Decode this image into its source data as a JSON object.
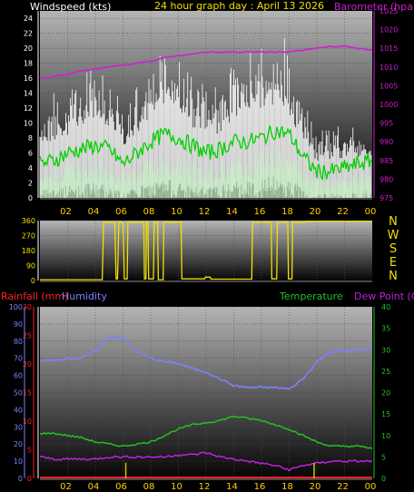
{
  "title": "24 hour graph day : April 13 2026",
  "colors": {
    "background": "#000000",
    "wind_axis": "#ffffff",
    "barometer": "#d01fd0",
    "gust": "#ffffff",
    "wind_avg": "#00d000",
    "wind_light": "#c8f0c8",
    "direction": "#f0e000",
    "rainfall": "#ff2020",
    "humidity": "#7f7fff",
    "temperature": "#22c022",
    "dew_point": "#c020e0",
    "rain_bar": "#d4c000"
  },
  "chart_data": [
    {
      "type": "line",
      "panel": "wind",
      "title": "24 hour graph day : April 13 2026",
      "left_label": "Windspeed (kts)",
      "right_label": "Barometer (hpa)",
      "x_ticks": [
        "02",
        "04",
        "06",
        "08",
        "10",
        "12",
        "14",
        "16",
        "18",
        "20",
        "22",
        "00"
      ],
      "x_range_hours": [
        0,
        24
      ],
      "y_left_ticks": [
        "0",
        "2",
        "4",
        "6",
        "8",
        "10",
        "12",
        "14",
        "16",
        "18",
        "20",
        "22",
        "24"
      ],
      "y_left_range": [
        0,
        25
      ],
      "y_right_ticks": [
        "975",
        "980",
        "985",
        "990",
        "995",
        "1000",
        "1005",
        "1010",
        "1015",
        "1020",
        "1025"
      ],
      "y_right_range": [
        975,
        1025
      ],
      "grid": true,
      "series": [
        {
          "role": "gust_max",
          "x": [
            0,
            1,
            2,
            3,
            4,
            5,
            6,
            7,
            8,
            9,
            10,
            11,
            12,
            13,
            14,
            15,
            16,
            17,
            18,
            19,
            20,
            21,
            22,
            23,
            24
          ],
          "values": [
            12,
            14,
            15,
            16,
            18,
            16,
            12,
            15,
            18,
            20,
            19,
            16,
            15,
            15,
            18,
            19,
            21,
            20,
            22,
            13,
            9,
            9,
            10,
            9,
            9
          ]
        },
        {
          "role": "gust_typical",
          "x": [
            0,
            1,
            2,
            3,
            4,
            5,
            6,
            7,
            8,
            9,
            10,
            11,
            12,
            13,
            14,
            15,
            16,
            17,
            18,
            19,
            20,
            21,
            22,
            23,
            24
          ],
          "values": [
            7,
            8,
            9,
            10,
            11,
            10,
            8,
            9,
            12,
            13,
            12,
            10,
            10,
            9,
            11,
            12,
            13,
            13,
            12,
            8,
            5,
            6,
            6,
            6,
            6
          ]
        },
        {
          "role": "average",
          "x": [
            0,
            1,
            2,
            3,
            4,
            5,
            6,
            7,
            8,
            9,
            10,
            11,
            12,
            13,
            14,
            15,
            16,
            17,
            18,
            19,
            20,
            21,
            22,
            23,
            24
          ],
          "values": [
            4.5,
            5,
            6,
            6.5,
            7,
            6.5,
            4.5,
            6,
            7.5,
            8.5,
            8,
            7,
            6,
            6.5,
            7.5,
            7.5,
            8,
            9,
            8.5,
            5.5,
            3.5,
            3.5,
            4,
            4.5,
            5
          ]
        },
        {
          "role": "lull",
          "x": [
            0,
            1,
            2,
            3,
            4,
            5,
            6,
            7,
            8,
            9,
            10,
            11,
            12,
            13,
            14,
            15,
            16,
            17,
            18,
            19,
            20,
            21,
            22,
            23,
            24
          ],
          "values": [
            2.5,
            3,
            3.5,
            3.5,
            4,
            3.5,
            2.5,
            3,
            4,
            4.5,
            4,
            3.5,
            3,
            3.5,
            4,
            4,
            4.5,
            5,
            4.5,
            3,
            2,
            2,
            2,
            2.5,
            2.5
          ]
        },
        {
          "role": "barometer",
          "x": [
            0,
            1,
            2,
            3,
            4,
            5,
            6,
            7,
            8,
            9,
            10,
            11,
            12,
            13,
            14,
            15,
            16,
            17,
            18,
            19,
            20,
            21,
            22,
            23,
            24
          ],
          "values": [
            1007,
            1007.5,
            1008,
            1009,
            1009.5,
            1010,
            1010.5,
            1011,
            1011.5,
            1012.5,
            1013,
            1013.5,
            1014,
            1014,
            1014,
            1014,
            1014,
            1014,
            1014,
            1014.5,
            1015,
            1015.5,
            1015.5,
            1015,
            1014.5
          ]
        }
      ]
    },
    {
      "type": "line",
      "panel": "direction",
      "y_left_ticks": [
        "0",
        "90",
        "180",
        "270",
        "360"
      ],
      "y_left_range": [
        0,
        360
      ],
      "compass": [
        "N",
        "W",
        "S",
        "E",
        "N"
      ],
      "x_range_hours": [
        0,
        24
      ],
      "grid": true,
      "series": [
        {
          "role": "direction",
          "x": [
            0,
            4.5,
            4.6,
            5.4,
            5.5,
            5.6,
            5.7,
            5.8,
            6.0,
            6.1,
            6.3,
            6.35,
            6.5,
            7.5,
            7.55,
            7.65,
            7.7,
            7.8,
            7.85,
            8.2,
            8.25,
            8.5,
            8.55,
            8.9,
            8.95,
            9.5,
            9.55,
            10.2,
            10.25,
            11.9,
            11.95,
            12.3,
            12.35,
            15.3,
            15.35,
            16.7,
            16.75,
            17.1,
            17.15,
            17.9,
            17.95,
            18.2,
            18.25,
            19.2,
            19.25,
            24
          ],
          "values": [
            5,
            5,
            350,
            350,
            10,
            10,
            350,
            350,
            350,
            10,
            10,
            350,
            350,
            350,
            10,
            10,
            350,
            350,
            10,
            10,
            350,
            350,
            5,
            5,
            350,
            350,
            350,
            350,
            10,
            10,
            20,
            20,
            8,
            8,
            350,
            350,
            10,
            10,
            350,
            350,
            10,
            10,
            350,
            350,
            355,
            355
          ]
        }
      ]
    },
    {
      "type": "line",
      "panel": "weather",
      "left_label_rain": "Rainfall (mm)",
      "left_label_humidity": "Humidity",
      "right_label_temp": "Temperature",
      "right_label_dew": "Dew Point (C)",
      "x_ticks": [
        "02",
        "04",
        "06",
        "08",
        "10",
        "12",
        "14",
        "16",
        "18",
        "20",
        "22",
        "00"
      ],
      "x_range_hours": [
        0,
        24
      ],
      "humidity_ticks": [
        "0",
        "10",
        "20",
        "30",
        "40",
        "50",
        "60",
        "70",
        "80",
        "90",
        "100"
      ],
      "humidity_range": [
        0,
        100
      ],
      "rain_ticks": [
        "0",
        "5",
        "10",
        "15",
        "20",
        "25",
        "30"
      ],
      "rain_range": [
        0,
        30
      ],
      "temp_ticks": [
        "0",
        "5",
        "10",
        "15",
        "20",
        "25",
        "30",
        "35",
        "40"
      ],
      "temp_range": [
        0,
        40
      ],
      "grid": true,
      "series": [
        {
          "role": "humidity",
          "x": [
            0,
            1,
            2,
            3,
            4,
            5,
            6,
            7,
            8,
            9,
            10,
            11,
            12,
            13,
            14,
            15,
            16,
            17,
            18,
            19,
            20,
            21,
            22,
            23,
            24
          ],
          "values": [
            68,
            69,
            70,
            70,
            74,
            83,
            82,
            74,
            70,
            68,
            67,
            64,
            62,
            58,
            54,
            53,
            53,
            53,
            52,
            58,
            68,
            74,
            74,
            75,
            75
          ]
        },
        {
          "role": "temperature",
          "x": [
            0,
            1,
            2,
            3,
            4,
            5,
            6,
            7,
            8,
            9,
            10,
            11,
            12,
            13,
            14,
            15,
            16,
            17,
            18,
            19,
            20,
            21,
            22,
            23,
            24
          ],
          "values": [
            10.5,
            10.5,
            10,
            9.5,
            8.5,
            8,
            7.5,
            8,
            8.5,
            10,
            11.5,
            12.5,
            13,
            13.5,
            14.5,
            14,
            13.5,
            12.5,
            11.5,
            10,
            8.5,
            7.5,
            7.5,
            7.5,
            7
          ]
        },
        {
          "role": "dew_point",
          "x": [
            0,
            1,
            2,
            3,
            4,
            5,
            6,
            7,
            8,
            9,
            10,
            11,
            12,
            13,
            14,
            15,
            16,
            17,
            18,
            19,
            20,
            21,
            22,
            23,
            24
          ],
          "values": [
            5,
            4.5,
            4.5,
            4.5,
            4.5,
            5,
            5,
            5,
            5,
            5,
            5.5,
            5.5,
            6,
            5,
            4.5,
            4,
            3.5,
            3,
            2,
            3,
            3.5,
            4,
            4,
            4,
            4
          ]
        },
        {
          "role": "rainfall",
          "x": [
            0,
            24
          ],
          "values": [
            0,
            0
          ]
        },
        {
          "role": "rain_marker",
          "x": [
            6.2,
            19.8
          ],
          "values": [
            3.8,
            3.8
          ]
        }
      ]
    }
  ]
}
